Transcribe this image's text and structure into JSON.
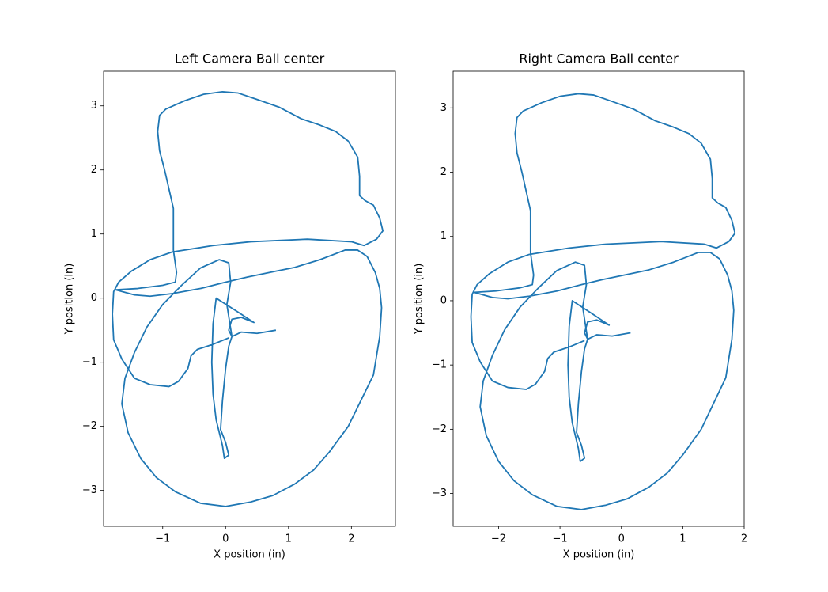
{
  "chart_data": [
    {
      "type": "line",
      "title": "Left Camera Ball center",
      "x_label": "X position (in)",
      "y_label": "Y position (in)",
      "color": "#1f77b4",
      "xlim": [
        -1.94,
        2.7
      ],
      "ylim": [
        -3.56,
        3.54
      ],
      "xticks": [
        {
          "value": -1,
          "label": "−1"
        },
        0,
        1,
        2
      ],
      "yticks": [
        {
          "value": -3,
          "label": "−3"
        },
        {
          "value": -2,
          "label": "−2"
        },
        {
          "value": -1,
          "label": "−1"
        },
        0,
        1,
        2,
        3
      ],
      "x": [
        0.8,
        0.5,
        0.25,
        0.1,
        0.05,
        0.1,
        0.25,
        0.45,
        0.2,
        -0.15,
        -0.2,
        -0.22,
        -0.2,
        -0.15,
        -0.05,
        -0.02,
        0.05,
        0.0,
        -0.08,
        -0.05,
        0.0,
        0.05,
        0.1,
        0.02,
        0.08,
        0.05,
        -0.1,
        -0.4,
        -0.7,
        -1.0,
        -1.25,
        -1.45,
        -1.6,
        -1.65,
        -1.55,
        -1.35,
        -1.1,
        -0.8,
        -0.4,
        0,
        0.4,
        0.75,
        1.1,
        1.4,
        1.65,
        1.95,
        2.15,
        2.35,
        2.45,
        2.48,
        2.45,
        2.38,
        2.25,
        2.1,
        1.9,
        1.5,
        1.1,
        0.8,
        0.35,
        0.0,
        -0.4,
        -0.85,
        -1.2,
        -1.45,
        -1.75,
        -1.4,
        -1.0,
        -0.8,
        -0.78,
        -0.83,
        -0.83,
        -0.9,
        -0.97,
        -1.05,
        -1.08,
        -1.05,
        -0.95,
        -0.65,
        -0.35,
        -0.05,
        0.2,
        0.5,
        0.85,
        1.2,
        1.5,
        1.75,
        1.95,
        2.1,
        2.13,
        2.13,
        2.22,
        2.35,
        2.45,
        2.5,
        2.4,
        2.2,
        2.0,
        1.3,
        0.85,
        0.4,
        -0.2,
        -0.85,
        -1.2,
        -1.5,
        -1.7,
        -1.78,
        -1.8,
        -1.78,
        -1.65,
        -1.45,
        -1.2,
        -0.9,
        -0.75,
        -0.6,
        -0.55,
        -0.45,
        -0.2,
        0.05
      ],
      "values": [
        -0.5,
        -0.55,
        -0.53,
        -0.6,
        -0.5,
        -0.33,
        -0.3,
        -0.38,
        -0.22,
        0.0,
        -0.4,
        -1.0,
        -1.5,
        -1.9,
        -2.3,
        -2.5,
        -2.45,
        -2.25,
        -2.05,
        -1.6,
        -1.1,
        -0.75,
        -0.6,
        -0.1,
        0.25,
        0.55,
        0.6,
        0.47,
        0.2,
        -0.1,
        -0.45,
        -0.85,
        -1.25,
        -1.65,
        -2.1,
        -2.5,
        -2.8,
        -3.02,
        -3.2,
        -3.25,
        -3.18,
        -3.08,
        -2.9,
        -2.68,
        -2.4,
        -2.0,
        -1.6,
        -1.2,
        -0.6,
        -0.15,
        0.15,
        0.4,
        0.65,
        0.75,
        0.75,
        0.6,
        0.48,
        0.42,
        0.33,
        0.25,
        0.15,
        0.07,
        0.03,
        0.05,
        0.13,
        0.15,
        0.2,
        0.25,
        0.4,
        0.75,
        1.4,
        1.7,
        2.0,
        2.3,
        2.6,
        2.85,
        2.95,
        3.08,
        3.18,
        3.22,
        3.2,
        3.1,
        2.98,
        2.8,
        2.7,
        2.6,
        2.45,
        2.2,
        1.9,
        1.6,
        1.52,
        1.45,
        1.25,
        1.05,
        0.92,
        0.82,
        0.88,
        0.92,
        0.9,
        0.88,
        0.82,
        0.72,
        0.6,
        0.42,
        0.25,
        0.1,
        -0.25,
        -0.65,
        -0.95,
        -1.25,
        -1.35,
        -1.38,
        -1.3,
        -1.1,
        -0.9,
        -0.8,
        -0.72,
        -0.62
      ]
    },
    {
      "type": "line",
      "title": "Right Camera Ball center",
      "x_label": "X position (in)",
      "y_label": "Y position (in)",
      "color": "#1f77b4",
      "xlim": [
        -2.74,
        2.0
      ],
      "ylim": [
        -3.51,
        3.57
      ],
      "xticks": [
        {
          "value": -2,
          "label": "−2"
        },
        {
          "value": -1,
          "label": "−1"
        },
        0,
        1,
        2
      ],
      "yticks": [
        {
          "value": -3,
          "label": "−3"
        },
        {
          "value": -2,
          "label": "−2"
        },
        {
          "value": -1,
          "label": "−1"
        },
        0,
        1,
        2,
        3
      ],
      "x": [
        0.15,
        -0.15,
        -0.4,
        -0.55,
        -0.6,
        -0.55,
        -0.4,
        -0.2,
        -0.45,
        -0.8,
        -0.85,
        -0.87,
        -0.85,
        -0.8,
        -0.7,
        -0.67,
        -0.6,
        -0.65,
        -0.73,
        -0.7,
        -0.65,
        -0.6,
        -0.55,
        -0.63,
        -0.57,
        -0.6,
        -0.75,
        -1.05,
        -1.35,
        -1.65,
        -1.9,
        -2.1,
        -2.25,
        -2.3,
        -2.2,
        -2.0,
        -1.75,
        -1.45,
        -1.05,
        -0.65,
        -0.25,
        0.1,
        0.45,
        0.75,
        1.0,
        1.3,
        1.5,
        1.7,
        1.8,
        1.83,
        1.8,
        1.73,
        1.6,
        1.45,
        1.25,
        0.85,
        0.45,
        0.15,
        -0.3,
        -0.65,
        -1.05,
        -1.5,
        -1.85,
        -2.1,
        -2.4,
        -2.05,
        -1.65,
        -1.45,
        -1.43,
        -1.48,
        -1.48,
        -1.55,
        -1.62,
        -1.7,
        -1.73,
        -1.7,
        -1.6,
        -1.3,
        -1.0,
        -0.7,
        -0.45,
        -0.15,
        0.2,
        0.55,
        0.85,
        1.1,
        1.3,
        1.45,
        1.48,
        1.48,
        1.57,
        1.7,
        1.8,
        1.85,
        1.75,
        1.55,
        1.35,
        0.65,
        0.2,
        -0.25,
        -0.85,
        -1.5,
        -1.85,
        -2.15,
        -2.35,
        -2.43,
        -2.45,
        -2.43,
        -2.3,
        -2.1,
        -1.85,
        -1.55,
        -1.4,
        -1.25,
        -1.2,
        -1.1,
        -0.85,
        -0.6
      ],
      "values": [
        -0.5,
        -0.55,
        -0.53,
        -0.6,
        -0.5,
        -0.33,
        -0.3,
        -0.38,
        -0.22,
        0.0,
        -0.4,
        -1.0,
        -1.5,
        -1.9,
        -2.3,
        -2.5,
        -2.45,
        -2.25,
        -2.05,
        -1.6,
        -1.1,
        -0.75,
        -0.6,
        -0.1,
        0.25,
        0.55,
        0.6,
        0.47,
        0.2,
        -0.1,
        -0.45,
        -0.85,
        -1.25,
        -1.65,
        -2.1,
        -2.5,
        -2.8,
        -3.02,
        -3.2,
        -3.25,
        -3.18,
        -3.08,
        -2.9,
        -2.68,
        -2.4,
        -2.0,
        -1.6,
        -1.2,
        -0.6,
        -0.15,
        0.15,
        0.4,
        0.65,
        0.75,
        0.75,
        0.6,
        0.48,
        0.42,
        0.33,
        0.25,
        0.15,
        0.07,
        0.03,
        0.05,
        0.13,
        0.15,
        0.2,
        0.25,
        0.4,
        0.75,
        1.4,
        1.7,
        2.0,
        2.3,
        2.6,
        2.85,
        2.95,
        3.08,
        3.18,
        3.22,
        3.2,
        3.1,
        2.98,
        2.8,
        2.7,
        2.6,
        2.45,
        2.2,
        1.9,
        1.6,
        1.52,
        1.45,
        1.25,
        1.05,
        0.92,
        0.82,
        0.88,
        0.92,
        0.9,
        0.88,
        0.82,
        0.72,
        0.6,
        0.42,
        0.25,
        0.1,
        -0.25,
        -0.65,
        -0.95,
        -1.25,
        -1.35,
        -1.38,
        -1.3,
        -1.1,
        -0.9,
        -0.8,
        -0.72,
        -0.62
      ]
    }
  ]
}
